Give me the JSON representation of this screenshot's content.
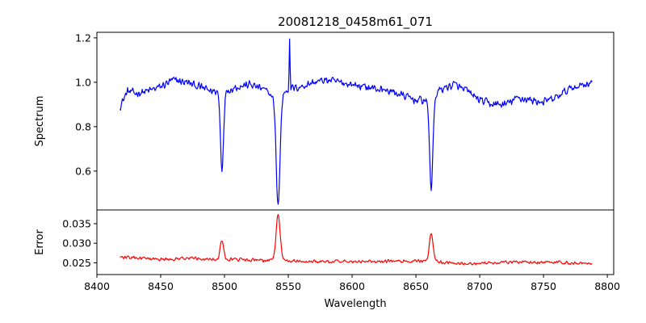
{
  "chart_data": [
    {
      "type": "line",
      "title": "20081218_0458m61_071",
      "xlabel": "",
      "ylabel": "Spectrum",
      "xlim": [
        8400,
        8805
      ],
      "ylim": [
        0.425,
        1.225
      ],
      "yticks": [
        0.6,
        0.8,
        1.0,
        1.2
      ],
      "ytick_labels": [
        "0.6",
        "0.8",
        "1.0",
        "1.2"
      ],
      "grid": false,
      "series": [
        {
          "name": "Spectrum",
          "color": "#0000ff",
          "x_start": 8418,
          "x_end": 8788,
          "continuum": [
            [
              8418,
              0.89
            ],
            [
              8424,
              0.96
            ],
            [
              8430,
              0.95
            ],
            [
              8440,
              0.96
            ],
            [
              8450,
              0.98
            ],
            [
              8460,
              1.01
            ],
            [
              8470,
              1.0
            ],
            [
              8480,
              0.98
            ],
            [
              8490,
              0.96
            ],
            [
              8500,
              0.96
            ],
            [
              8510,
              0.98
            ],
            [
              8520,
              0.99
            ],
            [
              8530,
              0.97
            ],
            [
              8540,
              0.93
            ],
            [
              8550,
              0.97
            ],
            [
              8560,
              0.98
            ],
            [
              8570,
              1.0
            ],
            [
              8580,
              1.01
            ],
            [
              8590,
              1.0
            ],
            [
              8600,
              0.99
            ],
            [
              8610,
              0.98
            ],
            [
              8620,
              0.97
            ],
            [
              8630,
              0.96
            ],
            [
              8640,
              0.94
            ],
            [
              8650,
              0.92
            ],
            [
              8660,
              0.92
            ],
            [
              8670,
              0.97
            ],
            [
              8680,
              0.99
            ],
            [
              8690,
              0.96
            ],
            [
              8700,
              0.92
            ],
            [
              8710,
              0.9
            ],
            [
              8720,
              0.9
            ],
            [
              8730,
              0.93
            ],
            [
              8740,
              0.92
            ],
            [
              8750,
              0.91
            ],
            [
              8760,
              0.93
            ],
            [
              8770,
              0.97
            ],
            [
              8780,
              0.99
            ],
            [
              8788,
              1.0
            ]
          ],
          "features": [
            {
              "center": 8498.0,
              "value": 0.61,
              "width": 1.2
            },
            {
              "center": 8542.0,
              "value": 0.45,
              "width": 1.5
            },
            {
              "center": 8551.0,
              "value": 1.19,
              "width": 0.35
            },
            {
              "center": 8662.0,
              "value": 0.525,
              "width": 1.3
            }
          ],
          "noise": 0.022
        }
      ]
    },
    {
      "type": "line",
      "title": "",
      "xlabel": "Wavelength",
      "ylabel": "Error",
      "xlim": [
        8400,
        8805
      ],
      "ylim": [
        0.022,
        0.0385
      ],
      "yticks": [
        0.025,
        0.03,
        0.035
      ],
      "ytick_labels": [
        "0.025",
        "0.030",
        "0.035"
      ],
      "xticks": [
        8400,
        8450,
        8500,
        8550,
        8600,
        8650,
        8700,
        8750,
        8800
      ],
      "xtick_labels": [
        "8400",
        "8450",
        "8500",
        "8550",
        "8600",
        "8650",
        "8700",
        "8750",
        "8800"
      ],
      "grid": false,
      "series": [
        {
          "name": "Error",
          "color": "#ff0000",
          "x_start": 8418,
          "x_end": 8788,
          "continuum": [
            [
              8418,
              0.0265
            ],
            [
              8430,
              0.0262
            ],
            [
              8450,
              0.0258
            ],
            [
              8470,
              0.0262
            ],
            [
              8490,
              0.026
            ],
            [
              8510,
              0.0258
            ],
            [
              8530,
              0.0256
            ],
            [
              8560,
              0.0254
            ],
            [
              8600,
              0.0253
            ],
            [
              8640,
              0.0254
            ],
            [
              8660,
              0.0255
            ],
            [
              8680,
              0.0249
            ],
            [
              8700,
              0.0248
            ],
            [
              8720,
              0.0252
            ],
            [
              8750,
              0.0252
            ],
            [
              8770,
              0.025
            ],
            [
              8788,
              0.0249
            ]
          ],
          "features": [
            {
              "center": 8498.0,
              "value": 0.0308,
              "width": 1.3
            },
            {
              "center": 8542.0,
              "value": 0.0375,
              "width": 1.6
            },
            {
              "center": 8662.0,
              "value": 0.0327,
              "width": 1.4
            }
          ],
          "noise": 0.0005
        }
      ]
    }
  ]
}
